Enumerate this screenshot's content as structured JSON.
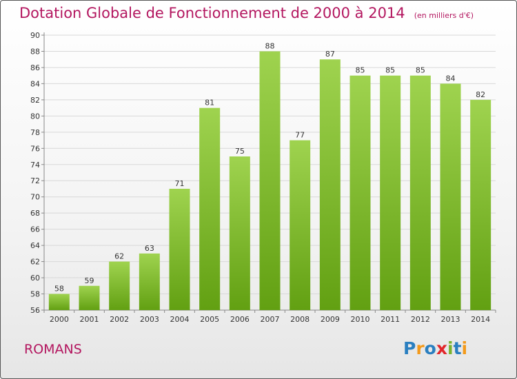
{
  "title": "Dotation Globale de Fonctionnement de 2000 à 2014",
  "unit": "(en milliers d'€)",
  "commune": "ROMANS",
  "logo": {
    "text": "Proxiti",
    "letters": [
      {
        "ch": "P",
        "color": "#2a7fc0"
      },
      {
        "ch": "r",
        "color": "#f39a1b"
      },
      {
        "ch": "o",
        "color": "#2a7fc0"
      },
      {
        "ch": "x",
        "color": "#e2262b"
      },
      {
        "ch": "i",
        "color": "#7bb32e"
      },
      {
        "ch": "t",
        "color": "#2a7fc0"
      },
      {
        "ch": "i",
        "color": "#f39a1b"
      }
    ]
  },
  "colors": {
    "bar_top": "#9fd34f",
    "bar_bottom": "#62a012",
    "accent": "#b3165f"
  },
  "chart_data": {
    "type": "bar",
    "categories": [
      "2000",
      "2001",
      "2002",
      "2003",
      "2004",
      "2005",
      "2006",
      "2007",
      "2008",
      "2009",
      "2010",
      "2011",
      "2012",
      "2013",
      "2014"
    ],
    "values": [
      58,
      59,
      62,
      63,
      71,
      81,
      75,
      88,
      77,
      87,
      85,
      85,
      85,
      84,
      82
    ],
    "ylim": [
      56,
      90
    ],
    "yticks": [
      56,
      58,
      60,
      62,
      64,
      66,
      68,
      70,
      72,
      74,
      76,
      78,
      80,
      82,
      84,
      86,
      88,
      90
    ],
    "grid": true,
    "legend": "none"
  }
}
